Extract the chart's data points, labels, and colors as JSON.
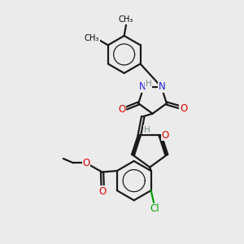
{
  "bg_color": "#ebebeb",
  "bond_color": "#1a1a1a",
  "bond_width": 1.6,
  "atom_colors": {
    "N": "#2020e0",
    "O": "#e00000",
    "Cl": "#00a000",
    "H": "#7a9090",
    "C": "#1a1a1a"
  }
}
